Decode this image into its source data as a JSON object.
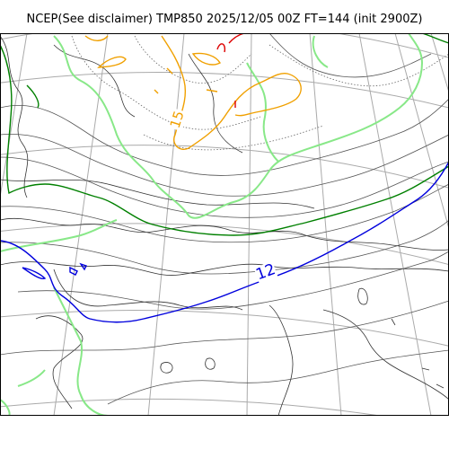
{
  "header": {
    "title": "NCEP(See disclaimer) TMP850 2025/12/05 00Z FT=144 (init 2900Z)"
  },
  "map": {
    "contour_labels": [
      {
        "text": "12",
        "color": "#0000dd"
      },
      {
        "text": "15",
        "color": "#f0a000"
      }
    ],
    "colors": {
      "graticule": "#aaaaaa",
      "coastline": "#333333",
      "isotherm_minor": "#666666",
      "isotherm_12": "#0000dd",
      "isotherm_green": "#008000",
      "isotherm_lightgreen": "#88e888",
      "isotherm_orange": "#f0a000",
      "isotherm_red": "#dd0000",
      "frame": "#000000"
    }
  }
}
